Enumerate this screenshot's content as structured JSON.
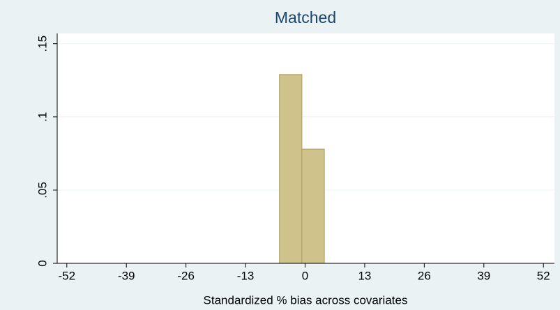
{
  "chart_data": {
    "type": "histogram",
    "title": "Matched",
    "xlabel": "Standardized % bias across covariates",
    "bins": [
      -5.6,
      -0.7,
      4.2
    ],
    "values": [
      0.129,
      0.078
    ],
    "color": "#cfc28a",
    "edge_color": "#a89c5e",
    "xlim": [
      -54.1,
      54.4
    ],
    "xticks": [
      -52,
      -39,
      -26,
      -13,
      0,
      13,
      26,
      39,
      52
    ],
    "ylim": [
      0,
      0.157
    ],
    "yticks": [
      0,
      {
        "value": 0.05,
        "label": ".05"
      },
      {
        "value": 0.1,
        "label": ".1"
      },
      {
        "value": 0.15,
        "label": ".15"
      }
    ],
    "grid": true
  }
}
